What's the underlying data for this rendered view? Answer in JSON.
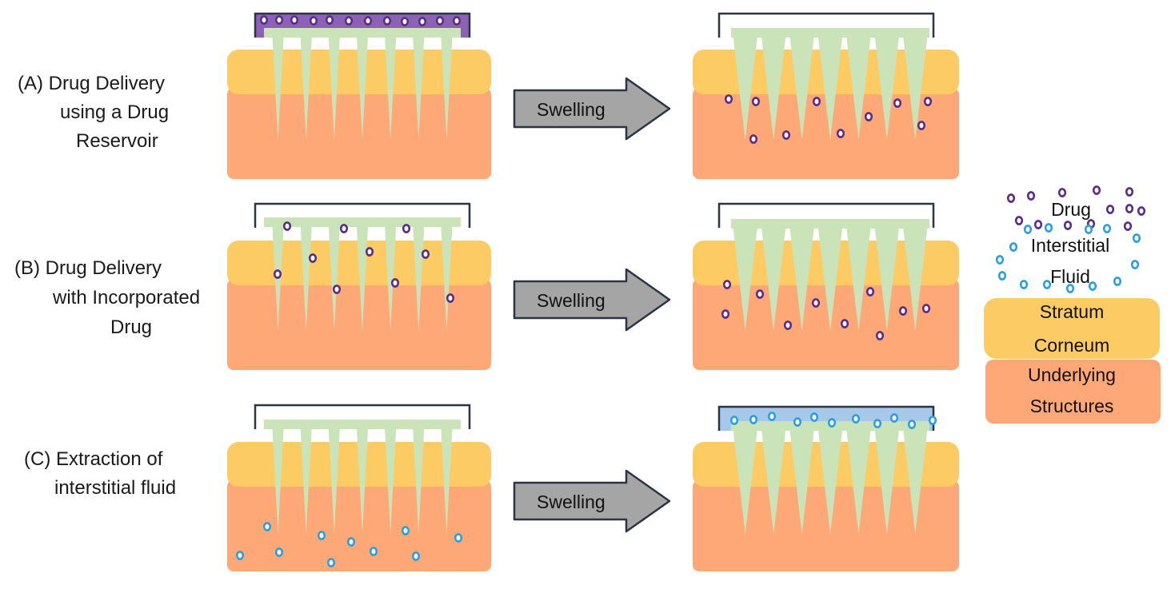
{
  "colors": {
    "stratum_corneum": "#fdcb63",
    "underlying": "#fea877",
    "needle": "#cbe3b8",
    "drug_fill": "#9a5fc0",
    "drug_stroke": "#5a2d8c",
    "fluid_stroke": "#2aa0e0",
    "reservoir_drug": "#8b62b5",
    "reservoir_fluid": "#a8c8ea",
    "arrow": "#a5a5a5",
    "outline": "#2b3344"
  },
  "rows": [
    {
      "id": "A",
      "label_lines": [
        "(A)  Drug Delivery",
        "using a Drug",
        "Reservoir"
      ],
      "arrow_label": "Swelling"
    },
    {
      "id": "B",
      "label_lines": [
        "(B)  Drug Delivery",
        "with Incorporated",
        "Drug"
      ],
      "arrow_label": "Swelling"
    },
    {
      "id": "C",
      "label_lines": [
        "(C)  Extraction of",
        "interstitial fluid"
      ],
      "arrow_label": "Swelling"
    }
  ],
  "legend": {
    "drug": "Drug",
    "fluid_line1": "Interstitial",
    "fluid_line2": "Fluid",
    "stratum_line1": "Stratum",
    "stratum_line2": "Corneum",
    "underlying_line1": "Underlying",
    "underlying_line2": "Structures"
  },
  "icons": {
    "drug_particle": "drug-particle-icon",
    "fluid_particle": "fluid-particle-icon",
    "microneedle": "microneedle-icon",
    "arrow": "arrow-icon"
  }
}
